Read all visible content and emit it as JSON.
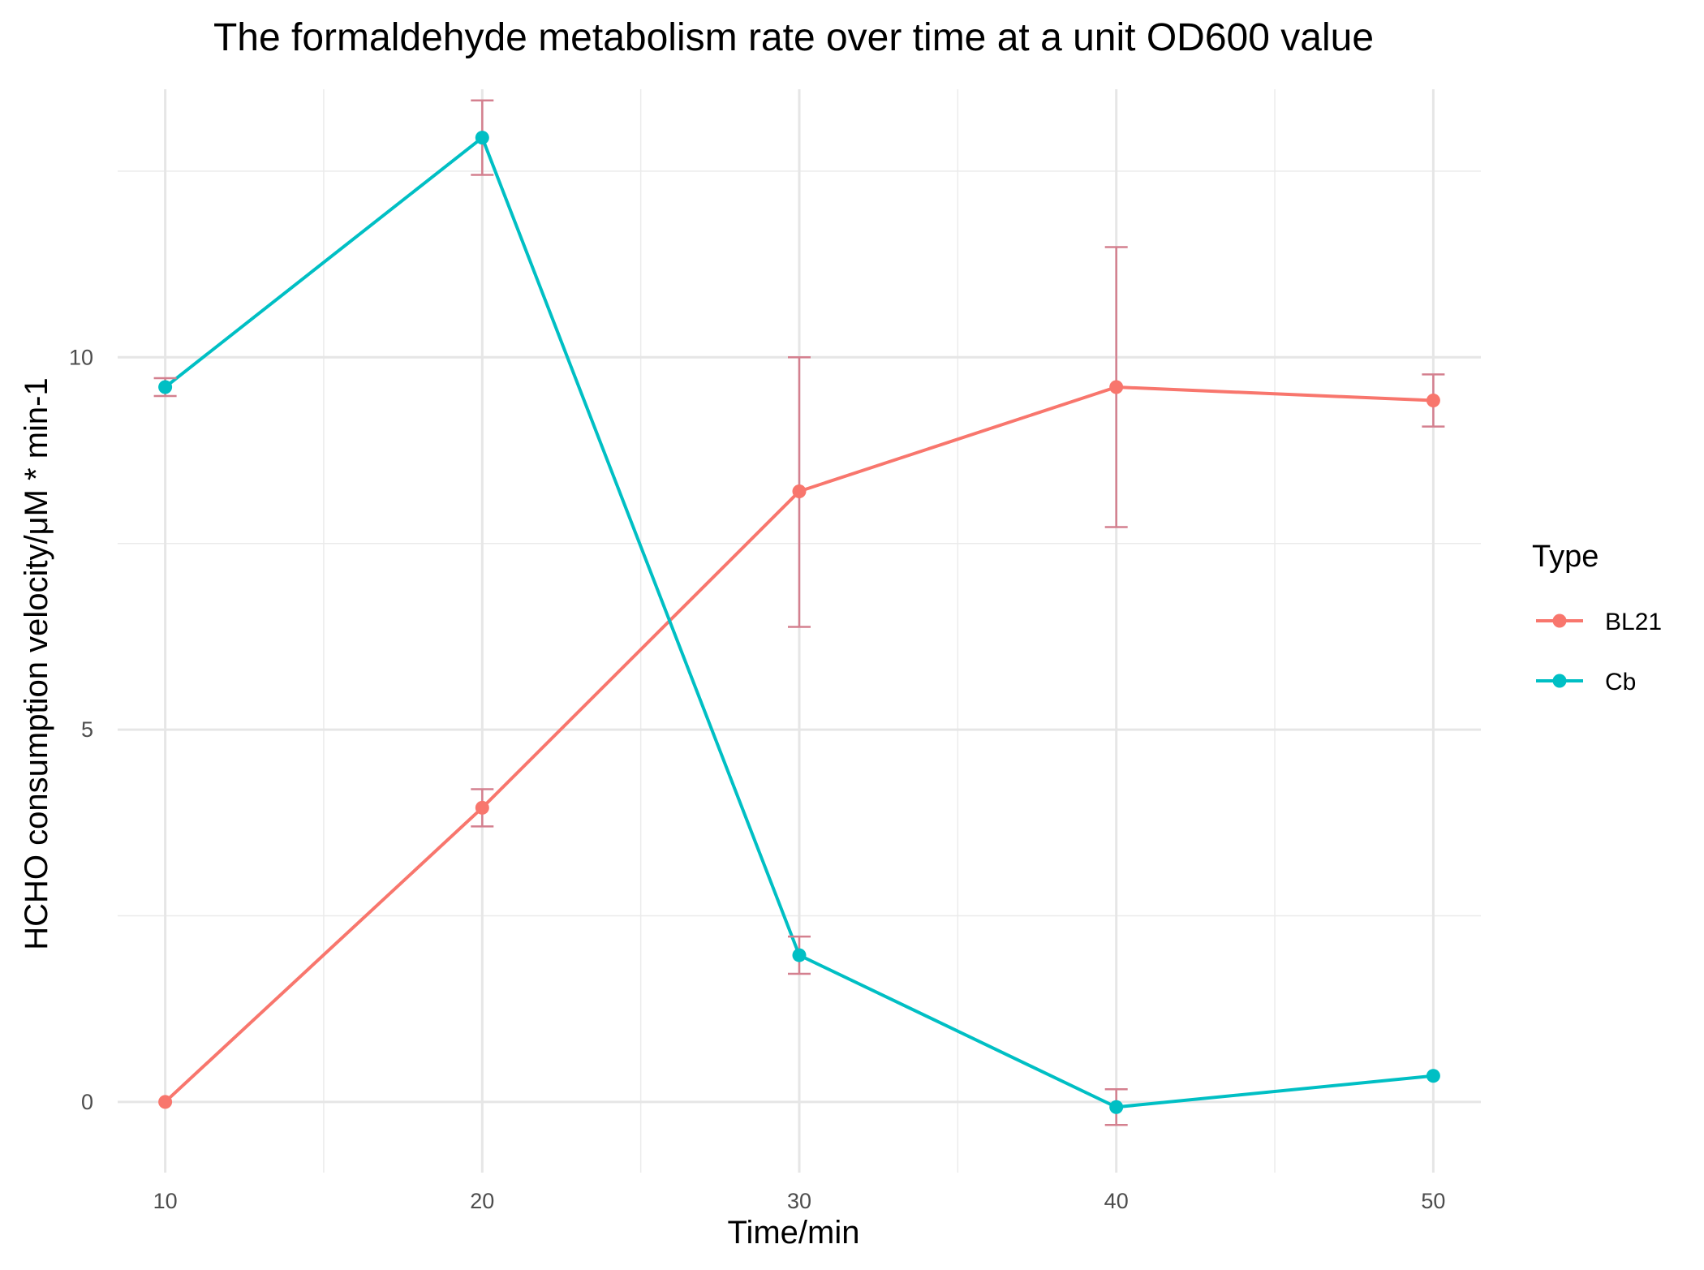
{
  "chart_data": {
    "type": "line",
    "title": "The formaldehyde metabolism rate over time at a unit OD600 value",
    "xlabel": "Time/min",
    "ylabel": "HCHO consumption velocity/μM * min-1",
    "x": [
      10,
      20,
      30,
      40,
      50
    ],
    "x_ticks": [
      10,
      20,
      30,
      40,
      50
    ],
    "y_ticks": [
      0,
      5,
      10
    ],
    "xlim": [
      8.5,
      51.5
    ],
    "ylim": [
      -0.95,
      13.6
    ],
    "grid": true,
    "error_bar_color": "#d4808f",
    "legend": {
      "title": "Type",
      "position": "right"
    },
    "series": [
      {
        "name": "BL21",
        "color": "#f8766d",
        "values": [
          0.0,
          3.95,
          8.2,
          9.6,
          9.42
        ],
        "error_low": [
          null,
          3.7,
          6.38,
          7.72,
          9.07
        ],
        "error_high": [
          null,
          4.2,
          10.0,
          11.48,
          9.77
        ]
      },
      {
        "name": "Cb",
        "color": "#00bfc4",
        "values": [
          9.6,
          12.95,
          1.97,
          -0.07,
          0.35
        ],
        "error_low": [
          9.48,
          12.45,
          1.72,
          -0.31,
          null
        ],
        "error_high": [
          9.72,
          13.45,
          2.22,
          0.17,
          null
        ]
      }
    ]
  }
}
